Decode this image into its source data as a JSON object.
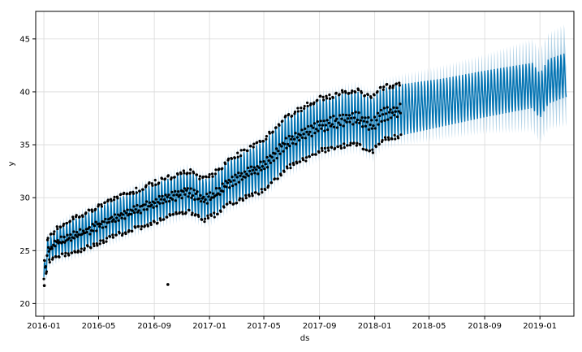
{
  "chart_data": {
    "type": "line",
    "title": "",
    "xlabel": "ds",
    "ylabel": "y",
    "x_ticks": [
      "2016-01",
      "2016-05",
      "2016-09",
      "2017-01",
      "2017-05",
      "2017-09",
      "2018-01",
      "2018-05",
      "2018-09",
      "2019-01"
    ],
    "x_range": [
      "2015-12-14",
      "2019-03-17"
    ],
    "y_ticks": [
      20,
      25,
      30,
      35,
      40,
      45
    ],
    "ylim": [
      18.8,
      47.6
    ],
    "grid": true,
    "legend": "none",
    "colors": {
      "forecast_line": "#0072B2",
      "uncertainty": "#8fbddb",
      "observed": "#000000",
      "grid": "#d9d9d9"
    },
    "series": [
      {
        "role": "forecast-trend",
        "points": [
          [
            "2016-01-01",
            22.5
          ],
          [
            "2016-01-10",
            25.0
          ],
          [
            "2016-02-01",
            25.8
          ],
          [
            "2016-04-01",
            26.8
          ],
          [
            "2016-06-01",
            28.0
          ],
          [
            "2016-09-01",
            29.5
          ],
          [
            "2016-11-15",
            30.6
          ],
          [
            "2016-12-20",
            29.8
          ],
          [
            "2017-01-10",
            30.2
          ],
          [
            "2017-02-15",
            31.5
          ],
          [
            "2017-05-01",
            33.0
          ],
          [
            "2017-06-15",
            35.0
          ],
          [
            "2017-09-01",
            36.8
          ],
          [
            "2017-11-20",
            37.6
          ],
          [
            "2017-12-28",
            36.8
          ],
          [
            "2018-01-15",
            37.8
          ],
          [
            "2018-03-01",
            38.3
          ],
          [
            "2018-06-01",
            39.0
          ],
          [
            "2018-09-01",
            39.8
          ],
          [
            "2018-12-15",
            40.6
          ],
          [
            "2019-01-01",
            39.6
          ],
          [
            "2019-01-20",
            41.0
          ],
          [
            "2019-02-28",
            41.6
          ]
        ],
        "weekly_amplitude": [
          [
            "2016-01-01",
            1.2
          ],
          [
            "2016-03-01",
            1.8
          ],
          [
            "2016-06-01",
            2.0
          ],
          [
            "2017-01-01",
            2.2
          ],
          [
            "2017-06-01",
            2.8
          ],
          [
            "2018-01-01",
            2.9
          ],
          [
            "2018-06-01",
            2.6
          ],
          [
            "2019-02-28",
            2.4
          ]
        ],
        "uncertainty_halfwidth": [
          [
            "2016-01-01",
            0.7
          ],
          [
            "2017-06-01",
            0.9
          ],
          [
            "2018-03-01",
            1.0
          ],
          [
            "2018-09-01",
            1.6
          ],
          [
            "2019-02-28",
            2.8
          ]
        ]
      },
      {
        "role": "observed",
        "start": "2016-01-01",
        "end": "2018-02-28",
        "outliers": [
          [
            "2016-10-01",
            21.8
          ],
          [
            "2016-01-02",
            21.7
          ]
        ]
      }
    ]
  }
}
